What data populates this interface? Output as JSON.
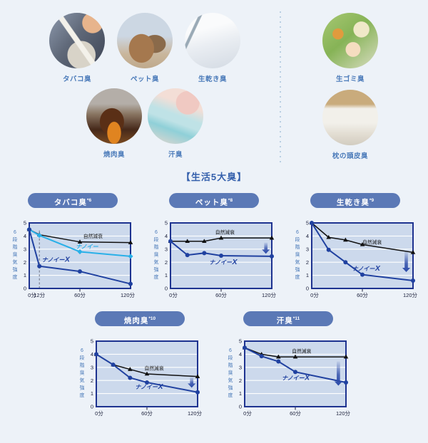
{
  "colors": {
    "page_bg": "#edf2f8",
    "label_blue": "#4a7ab9",
    "caption_blue": "#3560ac",
    "pill_bg": "#5b79b6",
    "plot_bg": "#ccd9ec",
    "plot_border": "#1e3390",
    "grid_white": "#ffffff",
    "natural_black": "#111111",
    "nanoe_x_blue": "#2041a0",
    "nanoe_cyan": "#29b0e8",
    "axis_text": "#1a1f3a",
    "arrow_blue": "#2a49a8"
  },
  "odors": {
    "caption": "【生活5大臭】",
    "left": [
      {
        "label": "タバコ臭",
        "photo": "cigarette-ashtray-photo"
      },
      {
        "label": "ペット臭",
        "photo": "sleeping-dog-cat-photo"
      },
      {
        "label": "生乾き臭",
        "photo": "hanging-shirts-photo"
      },
      {
        "label": "焼肉臭",
        "photo": "grilled-meat-smoke-photo"
      },
      {
        "label": "汗臭",
        "photo": "towel-wiping-sweat-photo"
      }
    ],
    "right": [
      {
        "label": "生ゴミ臭",
        "photo": "food-scraps-photo"
      },
      {
        "label": "枕の頭皮臭",
        "photo": "pillow-photo"
      }
    ]
  },
  "chart_data": [
    {
      "type": "line",
      "title": "タバコ臭",
      "sup": "*6",
      "ylabel": "6段階臭気強度",
      "ylim": [
        0,
        5
      ],
      "yticks": [
        0,
        1,
        2,
        3,
        4,
        5
      ],
      "xlim": [
        0,
        120
      ],
      "grid": true,
      "legend_position": "inline",
      "xticks": [
        {
          "x": 0,
          "label": "0分"
        },
        {
          "x": 12,
          "label": "12分"
        },
        {
          "x": 60,
          "label": "60分"
        },
        {
          "x": 120,
          "label": "120分"
        }
      ],
      "dashed_vline_x": 12,
      "series": [
        {
          "name": "自然減衰",
          "style": "natural",
          "points": [
            [
              0,
              4.5
            ],
            [
              12,
              4.1
            ],
            [
              60,
              3.55
            ],
            [
              120,
              3.5
            ]
          ],
          "label_pos": [
            64,
            3.85
          ]
        },
        {
          "name": "ナノイー",
          "style": "nanoe",
          "points": [
            [
              0,
              4.5
            ],
            [
              12,
              4.05
            ],
            [
              60,
              2.8
            ],
            [
              120,
              2.45
            ]
          ],
          "label_pos": [
            55,
            3.05
          ]
        },
        {
          "name": "ナノイーX",
          "style": "nanoe_x",
          "points": [
            [
              0,
              4.5
            ],
            [
              12,
              1.7
            ],
            [
              60,
              1.3
            ],
            [
              120,
              0.35
            ]
          ],
          "label_pos": [
            15,
            2.05
          ]
        }
      ],
      "arrow": null
    },
    {
      "type": "line",
      "title": "ペット臭",
      "sup": "*8",
      "ylabel": "6段階臭気強度",
      "ylim": [
        0,
        5
      ],
      "yticks": [
        0,
        1,
        2,
        3,
        4,
        5
      ],
      "xlim": [
        0,
        120
      ],
      "grid": true,
      "legend_position": "inline",
      "xticks": [
        {
          "x": 0,
          "label": "0分"
        },
        {
          "x": 60,
          "label": "60分"
        },
        {
          "x": 120,
          "label": "120分"
        }
      ],
      "dashed_vline_x": null,
      "series": [
        {
          "name": "自然減衰",
          "style": "natural",
          "points": [
            [
              0,
              3.6
            ],
            [
              20,
              3.6
            ],
            [
              40,
              3.6
            ],
            [
              60,
              3.85
            ],
            [
              120,
              3.85
            ]
          ],
          "label_pos": [
            53,
            4.15
          ]
        },
        {
          "name": "ナノイーX",
          "style": "nanoe_x",
          "points": [
            [
              0,
              3.6
            ],
            [
              20,
              2.55
            ],
            [
              40,
              2.7
            ],
            [
              60,
              2.5
            ],
            [
              120,
              2.45
            ]
          ],
          "label_pos": [
            46,
            1.85
          ]
        }
      ],
      "arrow": {
        "x": 113,
        "y_top": 3.5,
        "y_bottom": 2.65
      }
    },
    {
      "type": "line",
      "title": "生乾き臭",
      "sup": "*9",
      "ylabel": "6段階臭気強度",
      "ylim": [
        0,
        5
      ],
      "yticks": [
        0,
        1,
        2,
        3,
        4,
        5
      ],
      "xlim": [
        0,
        120
      ],
      "grid": true,
      "legend_position": "inline",
      "xticks": [
        {
          "x": 0,
          "label": "0分"
        },
        {
          "x": 60,
          "label": "60分"
        },
        {
          "x": 120,
          "label": "120分"
        }
      ],
      "dashed_vline_x": null,
      "series": [
        {
          "name": "自然減衰",
          "style": "natural",
          "points": [
            [
              0,
              5
            ],
            [
              20,
              3.9
            ],
            [
              40,
              3.7
            ],
            [
              60,
              3.35
            ],
            [
              120,
              2.75
            ]
          ],
          "label_pos": [
            60,
            3.4
          ]
        },
        {
          "name": "ナノイーX",
          "style": "nanoe_x",
          "points": [
            [
              0,
              5
            ],
            [
              20,
              2.95
            ],
            [
              40,
              2.0
            ],
            [
              60,
              1.05
            ],
            [
              120,
              0.6
            ]
          ],
          "label_pos": [
            48,
            1.35
          ]
        }
      ],
      "arrow": {
        "x": 112,
        "y_top": 2.8,
        "y_bottom": 1.25
      }
    },
    {
      "type": "line",
      "title": "焼肉臭",
      "sup": "*10",
      "ylabel": "6段階臭気強度",
      "ylim": [
        0,
        5
      ],
      "yticks": [
        0,
        1,
        2,
        3,
        4,
        5
      ],
      "xlim": [
        0,
        120
      ],
      "grid": true,
      "legend_position": "inline",
      "xticks": [
        {
          "x": 0,
          "label": "0分"
        },
        {
          "x": 60,
          "label": "60分"
        },
        {
          "x": 120,
          "label": "120分"
        }
      ],
      "dashed_vline_x": null,
      "series": [
        {
          "name": "自然減衰",
          "style": "natural",
          "points": [
            [
              0,
              4.0
            ],
            [
              20,
              3.2
            ],
            [
              40,
              2.85
            ],
            [
              60,
              2.5
            ],
            [
              120,
              2.3
            ]
          ],
          "label_pos": [
            57,
            2.8
          ]
        },
        {
          "name": "ナノイーX",
          "style": "nanoe_x",
          "points": [
            [
              0,
              4.0
            ],
            [
              20,
              3.2
            ],
            [
              40,
              2.2
            ],
            [
              60,
              1.85
            ],
            [
              120,
              1.1
            ]
          ],
          "label_pos": [
            46,
            1.35
          ]
        }
      ],
      "arrow": {
        "x": 113,
        "y_top": 2.25,
        "y_bottom": 1.45
      }
    },
    {
      "type": "line",
      "title": "汗臭",
      "sup": "*11",
      "ylabel": "6段階臭気強度",
      "ylim": [
        0,
        5
      ],
      "yticks": [
        0,
        1,
        2,
        3,
        4,
        5
      ],
      "xlim": [
        0,
        120
      ],
      "grid": true,
      "legend_position": "inline",
      "xticks": [
        {
          "x": 0,
          "label": "0分"
        },
        {
          "x": 60,
          "label": "60分"
        },
        {
          "x": 120,
          "label": "120分"
        }
      ],
      "dashed_vline_x": null,
      "series": [
        {
          "name": "自然減衰",
          "style": "natural",
          "points": [
            [
              0,
              4.5
            ],
            [
              20,
              4.0
            ],
            [
              40,
              3.8
            ],
            [
              60,
              3.8
            ],
            [
              120,
              3.8
            ]
          ],
          "label_pos": [
            56,
            4.1
          ]
        },
        {
          "name": "ナノイーX",
          "style": "nanoe_x",
          "points": [
            [
              0,
              4.5
            ],
            [
              20,
              3.85
            ],
            [
              40,
              3.45
            ],
            [
              60,
              2.65
            ],
            [
              120,
              1.85
            ]
          ],
          "label_pos": [
            44,
            2.05
          ]
        }
      ],
      "arrow": {
        "x": 111,
        "y_top": 3.45,
        "y_bottom": 1.6
      }
    }
  ]
}
